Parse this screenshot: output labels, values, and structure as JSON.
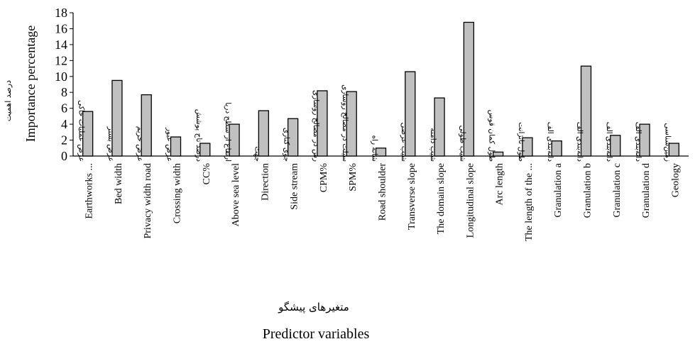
{
  "chart_data": {
    "type": "bar",
    "xlabel": "Predictor variables",
    "xlabel_fa": "متغیرهای پیشگو",
    "ylabel": "Importance percentage",
    "ylabel_fa": "درصد اهمیت",
    "ylim": [
      0,
      18
    ],
    "yticks": [
      0,
      2,
      4,
      6,
      8,
      10,
      12,
      14,
      16,
      18
    ],
    "grid": false,
    "categories": [
      {
        "en": "Earthworks ...",
        "fa": "عرض عملیات خاکی",
        "value": 5.6
      },
      {
        "en": "Bed width",
        "fa": "عرض بستر",
        "value": 9.5
      },
      {
        "en": "Privacy width road",
        "fa": "عرض حریم",
        "value": 7.7
      },
      {
        "en": "Crossing width",
        "fa": "عرض عبور",
        "value": 2.4
      },
      {
        "en": "CC%",
        "fa": "درصد تاج پوشش",
        "value": 1.6
      },
      {
        "en": "Above sea level",
        "fa": "ارتفاع از سطح دریا",
        "value": 4.0
      },
      {
        "en": "Direction",
        "fa": "جهت",
        "value": 5.7
      },
      {
        "en": "Side stream",
        "fa": "جوی کناری",
        "value": 4.7
      },
      {
        "en": "CPM%",
        "fa": "رس در مصالح روسازی",
        "value": 8.2
      },
      {
        "en": "SPM%",
        "fa": "سیلت در مصالح روسازی",
        "value": 8.1
      },
      {
        "en": "Road shoulder",
        "fa": "شانه راه",
        "value": 1.0
      },
      {
        "en": "Transverse slope",
        "fa": "شیب عرضی",
        "value": 10.6
      },
      {
        "en": "The domain slope",
        "fa": "شیب دامنه",
        "value": 7.3
      },
      {
        "en": "Longitudinal slope",
        "fa": "شیب طولی",
        "value": 16.8
      },
      {
        "en": "Arc length",
        "fa": "طول کمان قوس",
        "value": 0.5
      },
      {
        "en": "The length of the ...",
        "fa": "طول تانژانت",
        "value": 2.3
      },
      {
        "en": "Granulation a",
        "fa": "دانه‌بندی الف",
        "value": 1.9
      },
      {
        "en": "Granulation b",
        "fa": "دانه‌بندی الف",
        "value": 11.3
      },
      {
        "en": "Granulation c",
        "fa": "دانه‌بندی الف",
        "value": 2.6
      },
      {
        "en": "Granulation d",
        "fa": "دانه‌بندی الف",
        "value": 4.0
      },
      {
        "en": "Geology",
        "fa": "زمین‌شناسی",
        "value": 1.6
      }
    ],
    "bar_color": "#c0c0c0",
    "edge_color": "#000000"
  }
}
